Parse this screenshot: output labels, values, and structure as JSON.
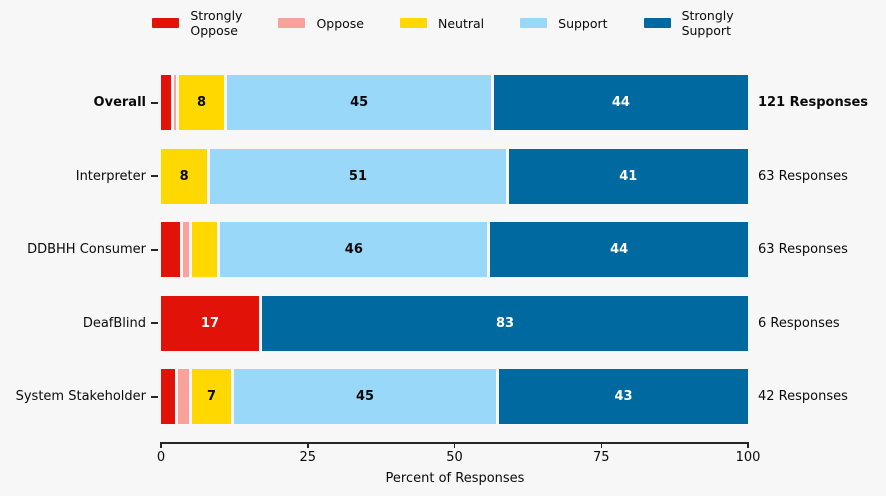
{
  "chart_data": {
    "type": "bar",
    "variant": "horizontal-stacked-percent",
    "title": "",
    "xlabel": "Percent of Responses",
    "xlim": [
      0,
      100
    ],
    "xticks": [
      0,
      25,
      50,
      75,
      100
    ],
    "grid": false,
    "legend_position": "top-center",
    "legend": [
      {
        "key": "strongly_oppose",
        "label": "Strongly\nOppose",
        "color": "#e11309",
        "text_color": "#ffffff"
      },
      {
        "key": "oppose",
        "label": "Oppose",
        "color": "#f8a29b",
        "text_color": "#0a0a0a"
      },
      {
        "key": "neutral",
        "label": "Neutral",
        "color": "#ffd800",
        "text_color": "#0a0a0a"
      },
      {
        "key": "support",
        "label": "Support",
        "color": "#9ad8fa",
        "text_color": "#0a0a0a"
      },
      {
        "key": "strongly_support",
        "label": "Strongly\nSupport",
        "color": "#0069a0",
        "text_color": "#ffffff"
      }
    ],
    "rows": [
      {
        "category": "Overall",
        "bold": true,
        "responses_label": "121 Responses",
        "segments": [
          {
            "key": "strongly_oppose",
            "value": 2,
            "width": 1.7,
            "label": ""
          },
          {
            "key": "oppose",
            "value": 1,
            "width": 0.8,
            "label": ""
          },
          {
            "key": "neutral",
            "value": 8,
            "width": 8.3,
            "label": "8"
          },
          {
            "key": "support",
            "value": 45,
            "width": 45.4,
            "label": "45"
          },
          {
            "key": "strongly_support",
            "value": 44,
            "width": 43.8,
            "label": "44"
          }
        ]
      },
      {
        "category": "Interpreter",
        "bold": false,
        "responses_label": "63 Responses",
        "segments": [
          {
            "key": "neutral",
            "value": 8,
            "width": 7.9,
            "label": "8"
          },
          {
            "key": "support",
            "value": 51,
            "width": 50.8,
            "label": "51"
          },
          {
            "key": "strongly_support",
            "value": 41,
            "width": 41.3,
            "label": "41"
          }
        ]
      },
      {
        "category": "DDBHH Consumer",
        "bold": false,
        "responses_label": "63 Responses",
        "segments": [
          {
            "key": "strongly_oppose",
            "value": 3,
            "width": 3.2,
            "label": ""
          },
          {
            "key": "oppose",
            "value": 2,
            "width": 1.6,
            "label": ""
          },
          {
            "key": "neutral",
            "value": 5,
            "width": 4.8,
            "label": ""
          },
          {
            "key": "support",
            "value": 46,
            "width": 46.0,
            "label": "46"
          },
          {
            "key": "strongly_support",
            "value": 44,
            "width": 44.4,
            "label": "44"
          }
        ]
      },
      {
        "category": "DeafBlind",
        "bold": false,
        "responses_label": "6 Responses",
        "segments": [
          {
            "key": "strongly_oppose",
            "value": 17,
            "width": 16.7,
            "label": "17"
          },
          {
            "key": "strongly_support",
            "value": 83,
            "width": 83.3,
            "label": "83"
          }
        ]
      },
      {
        "category": "System Stakeholder",
        "bold": false,
        "responses_label": "42 Responses",
        "segments": [
          {
            "key": "strongly_oppose",
            "value": 2,
            "width": 2.4,
            "label": ""
          },
          {
            "key": "oppose",
            "value": 2,
            "width": 2.4,
            "label": ""
          },
          {
            "key": "neutral",
            "value": 7,
            "width": 7.1,
            "label": "7"
          },
          {
            "key": "support",
            "value": 45,
            "width": 45.2,
            "label": "45"
          },
          {
            "key": "strongly_support",
            "value": 43,
            "width": 42.9,
            "label": "43"
          }
        ]
      }
    ]
  },
  "colors": {
    "background": "#f7f7f7",
    "axis": "#262626",
    "text": "#0a0a0a"
  }
}
